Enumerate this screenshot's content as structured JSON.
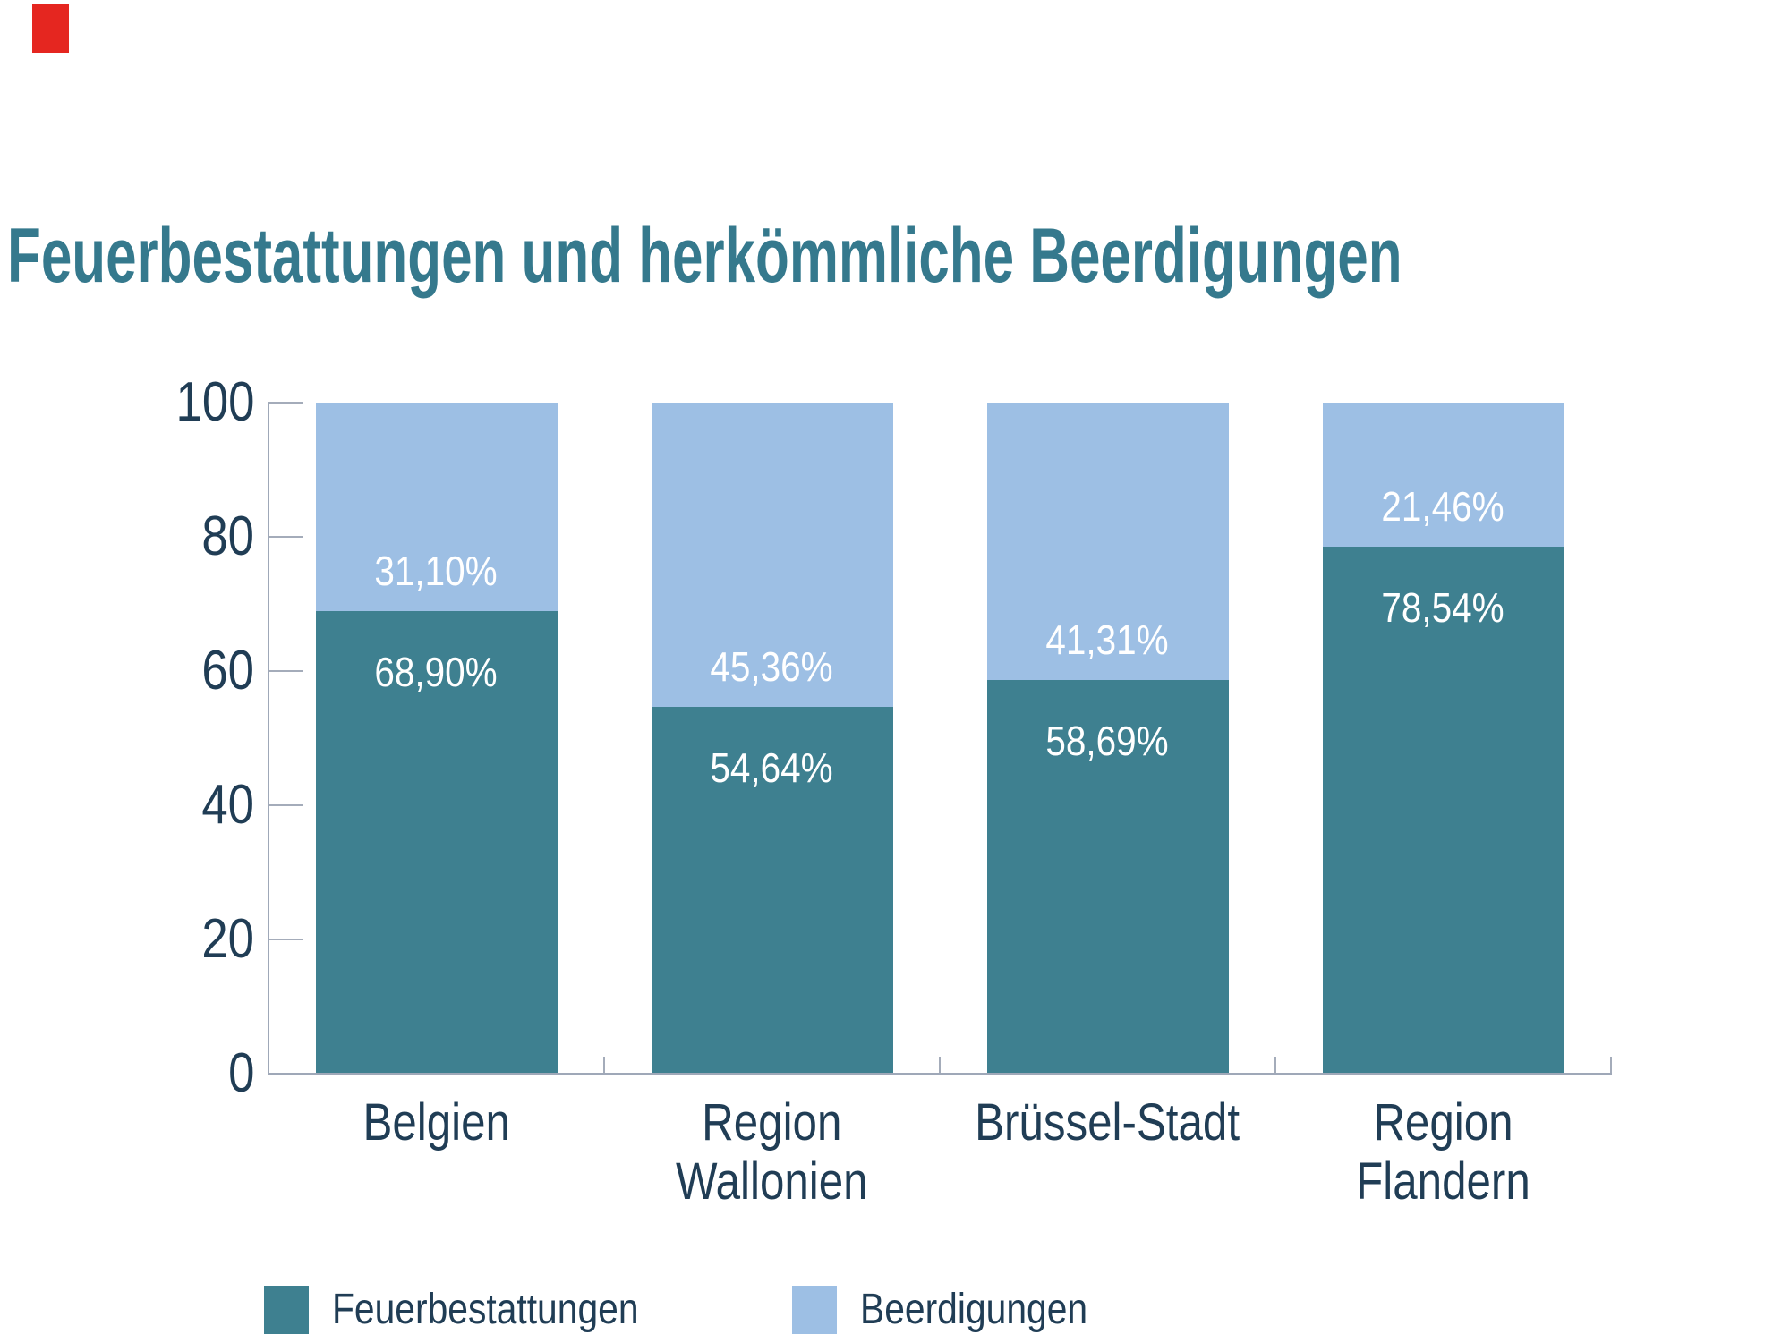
{
  "logo": {
    "name": "red-square-logo",
    "color": "#E52620"
  },
  "title": {
    "text": "Feuerbestattungen und herkömmliche Beerdigungen",
    "color": "#35798D"
  },
  "chart_data": {
    "type": "bar",
    "stacked": true,
    "orientation": "vertical",
    "title": "Feuerbestattungen und herkömmliche Beerdigungen",
    "xlabel": "",
    "ylabel": "",
    "ylim": [
      0,
      100
    ],
    "yticks": [
      0,
      20,
      40,
      60,
      80,
      100
    ],
    "grid": false,
    "legend_position": "bottom",
    "categories": [
      "Belgien",
      "Region\nWallonien",
      "Brüssel-Stadt",
      "Region\nFlandern"
    ],
    "series": [
      {
        "name": "Feuerbestattungen",
        "color": "#3E8090",
        "values": [
          68.9,
          54.64,
          58.69,
          78.54
        ],
        "labels": [
          "68,90%",
          "54,64%",
          "58,69%",
          "78,54%"
        ]
      },
      {
        "name": "Beerdigungen",
        "color": "#9DBFE4",
        "values": [
          31.1,
          45.36,
          41.31,
          21.46
        ],
        "labels": [
          "31,10%",
          "45,36%",
          "41,31%",
          "21,46%"
        ]
      }
    ]
  },
  "legend": {
    "items": [
      {
        "label": "Feuerbestattungen",
        "color": "#3E8090"
      },
      {
        "label": "Beerdigungen",
        "color": "#9DBFE4"
      }
    ]
  }
}
